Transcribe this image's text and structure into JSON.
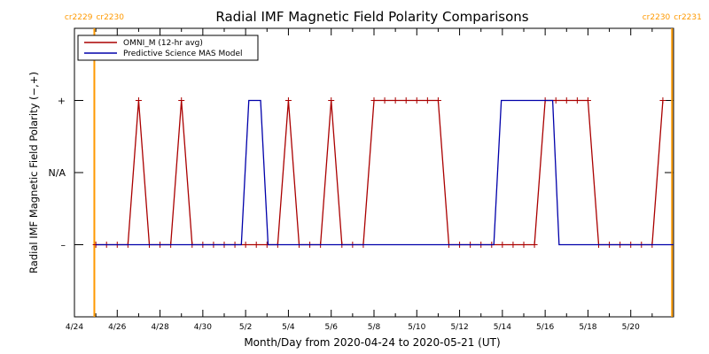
{
  "chart_data": {
    "type": "line",
    "title": "Radial IMF Magnetic Field Polarity Comparisons",
    "xlabel": "Month/Day from 2020-04-24 to 2020-05-21 (UT)",
    "ylabel": "Radial IMF Magnetic Field Polarity (−,+)",
    "x_range_days": [
      0,
      28
    ],
    "y_levels": {
      "minus": 0,
      "na": 1,
      "plus": 2
    },
    "ylim": [
      -1,
      3
    ],
    "x_ticks": [
      {
        "day": 0,
        "label": "4/24"
      },
      {
        "day": 2,
        "label": "4/26"
      },
      {
        "day": 4,
        "label": "4/28"
      },
      {
        "day": 6,
        "label": "4/30"
      },
      {
        "day": 8,
        "label": "5/2"
      },
      {
        "day": 10,
        "label": "5/4"
      },
      {
        "day": 12,
        "label": "5/6"
      },
      {
        "day": 14,
        "label": "5/8"
      },
      {
        "day": 16,
        "label": "5/10"
      },
      {
        "day": 18,
        "label": "5/12"
      },
      {
        "day": 20,
        "label": "5/14"
      },
      {
        "day": 22,
        "label": "5/16"
      },
      {
        "day": 24,
        "label": "5/18"
      },
      {
        "day": 26,
        "label": "5/20"
      }
    ],
    "y_ticks": [
      {
        "value": 2,
        "label": "+"
      },
      {
        "value": 1,
        "label": "N/A"
      },
      {
        "value": 0,
        "label": "–"
      }
    ],
    "carrington_markers": [
      {
        "day": 0.93,
        "left_label": "cr2229",
        "right_label": "cr2230",
        "position": "left"
      },
      {
        "day": 27.93,
        "left_label": "cr2230",
        "right_label": "cr2231",
        "position": "right"
      }
    ],
    "legend": {
      "placement": "top-left"
    },
    "series": [
      {
        "name": "OMNI_M (12-hr avg)",
        "color": "#aa0000",
        "marker": "plus",
        "points": [
          [
            1.0,
            0
          ],
          [
            1.5,
            0
          ],
          [
            2.0,
            0
          ],
          [
            2.5,
            0
          ],
          [
            3.0,
            2
          ],
          [
            3.5,
            0
          ],
          [
            4.0,
            0
          ],
          [
            4.5,
            0
          ],
          [
            5.0,
            2
          ],
          [
            5.5,
            0
          ],
          [
            6.0,
            0
          ],
          [
            6.5,
            0
          ],
          [
            7.0,
            0
          ],
          [
            7.5,
            0
          ],
          [
            8.0,
            0
          ],
          [
            8.5,
            0
          ],
          [
            9.0,
            0
          ],
          [
            9.5,
            0
          ],
          [
            10.0,
            2
          ],
          [
            10.5,
            0
          ],
          [
            11.0,
            0
          ],
          [
            11.5,
            0
          ],
          [
            12.0,
            2
          ],
          [
            12.5,
            0
          ],
          [
            13.0,
            0
          ],
          [
            13.5,
            0
          ],
          [
            14.0,
            2
          ],
          [
            14.5,
            2
          ],
          [
            15.0,
            2
          ],
          [
            15.5,
            2
          ],
          [
            16.0,
            2
          ],
          [
            16.5,
            2
          ],
          [
            17.0,
            2
          ],
          [
            17.5,
            0
          ],
          [
            18.0,
            0
          ],
          [
            18.5,
            0
          ],
          [
            19.0,
            0
          ],
          [
            19.5,
            0
          ],
          [
            20.0,
            0
          ],
          [
            20.5,
            0
          ],
          [
            21.0,
            0
          ],
          [
            21.5,
            0
          ],
          [
            22.0,
            2
          ],
          [
            22.5,
            2
          ],
          [
            23.0,
            2
          ],
          [
            23.5,
            2
          ],
          [
            24.0,
            2
          ],
          [
            24.5,
            0
          ],
          [
            25.0,
            0
          ],
          [
            25.5,
            0
          ],
          [
            26.0,
            0
          ],
          [
            26.5,
            0
          ],
          [
            27.0,
            0
          ],
          [
            27.5,
            2
          ]
        ]
      },
      {
        "name": "Predictive Science MAS Model",
        "color": "#0000aa",
        "marker": "none",
        "points": [
          [
            1.0,
            0
          ],
          [
            7.8,
            0
          ],
          [
            8.15,
            2
          ],
          [
            8.7,
            2
          ],
          [
            9.05,
            0
          ],
          [
            19.6,
            0
          ],
          [
            19.95,
            2
          ],
          [
            22.35,
            2
          ],
          [
            22.65,
            0
          ],
          [
            28.0,
            0
          ]
        ]
      }
    ]
  }
}
